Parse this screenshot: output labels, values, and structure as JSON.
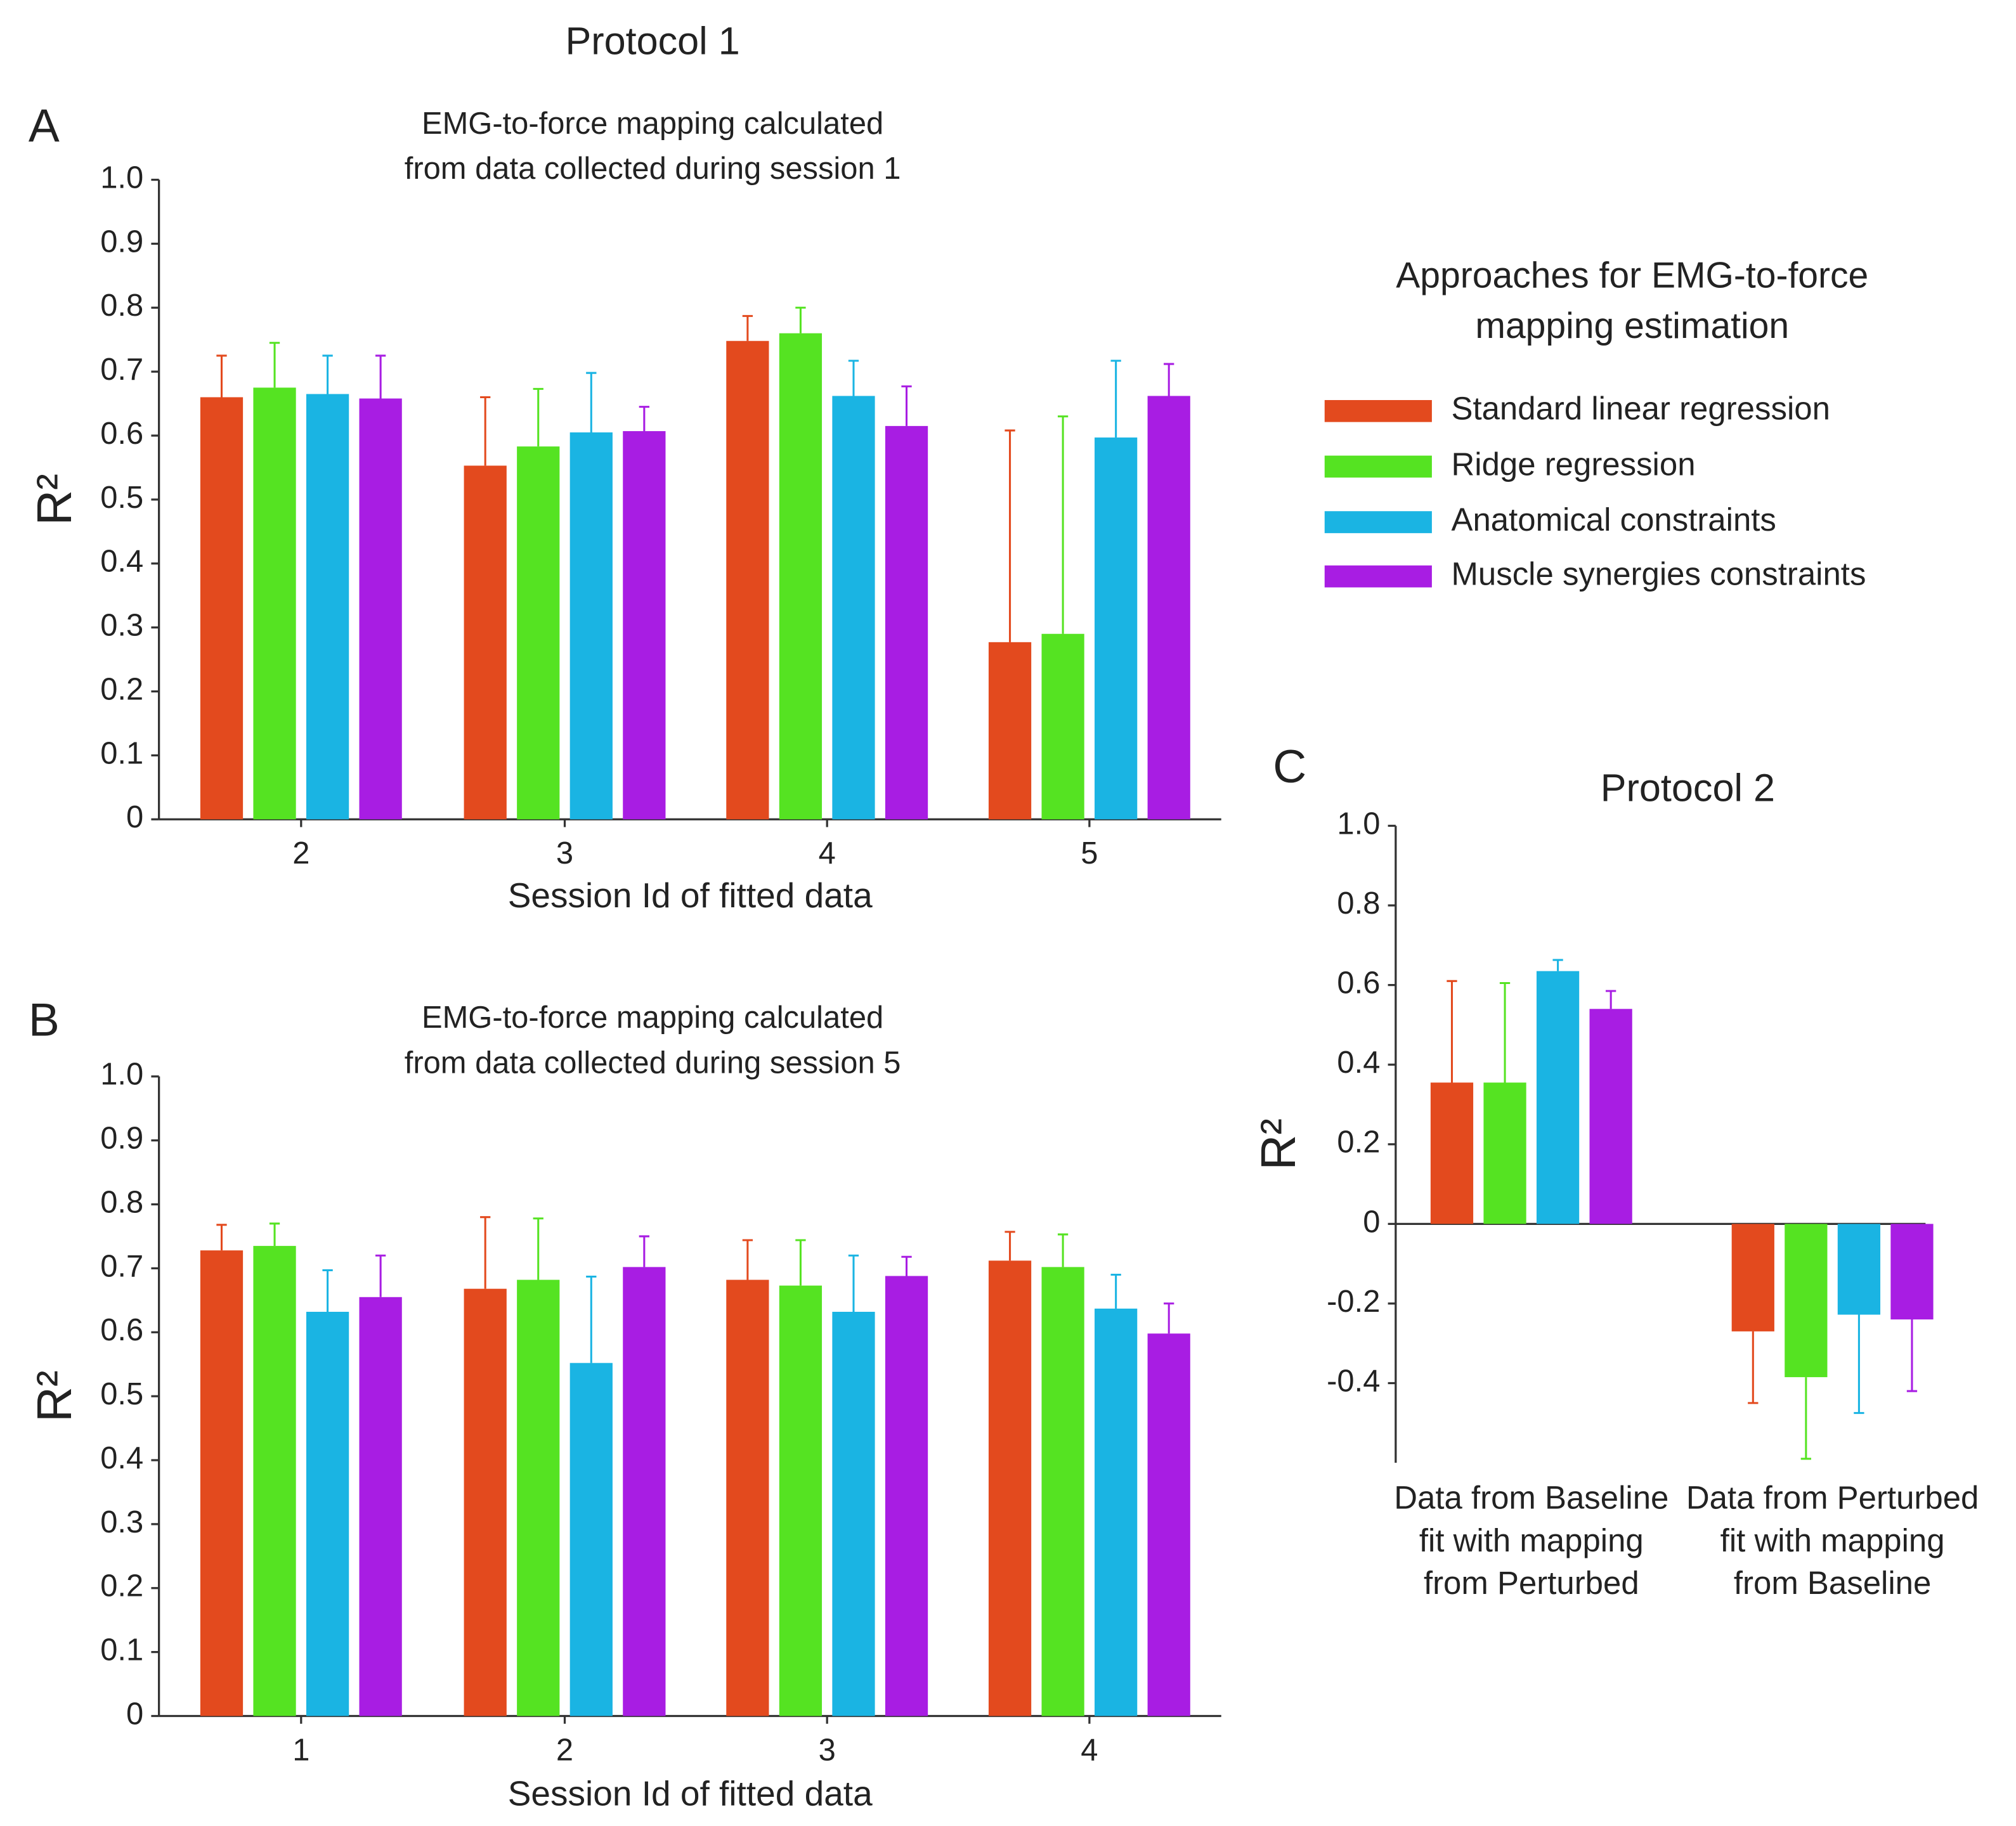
{
  "title": "Protocol 1",
  "legend_title": [
    "Approaches for EMG-to-force",
    "mapping estimation"
  ],
  "chart_data": [
    {
      "type": "bar",
      "panel": "A",
      "title": [
        "EMG-to-force mapping calculated",
        "from data collected during session 1"
      ],
      "xlabel": "Session Id of fitted data",
      "ylabel": "R²",
      "categories": [
        "2",
        "3",
        "4",
        "5"
      ],
      "ylim": [
        0,
        1
      ],
      "yticks": [
        0,
        0.1,
        0.2,
        0.3,
        0.4,
        0.5,
        0.6,
        0.7,
        0.8,
        0.9,
        {
          "value": 1,
          "label": "1.0"
        }
      ],
      "series": [
        {
          "name": "Standard linear regression",
          "color": "#e34a1e",
          "values": [
            0.66,
            0.553,
            0.748,
            0.277
          ],
          "errors": [
            0.065,
            0.107,
            0.039,
            0.331
          ]
        },
        {
          "name": "Ridge regression",
          "color": "#55e322",
          "values": [
            0.675,
            0.583,
            0.76,
            0.29
          ],
          "errors": [
            0.07,
            0.09,
            0.04,
            0.34
          ]
        },
        {
          "name": "Anatomical constraints",
          "color": "#1ab4e3",
          "values": [
            0.665,
            0.605,
            0.662,
            0.597
          ],
          "errors": [
            0.06,
            0.093,
            0.055,
            0.12
          ]
        },
        {
          "name": "Muscle synergies constraints",
          "color": "#a81de3",
          "values": [
            0.658,
            0.607,
            0.615,
            0.662
          ],
          "errors": [
            0.067,
            0.038,
            0.062,
            0.05
          ]
        }
      ]
    },
    {
      "type": "bar",
      "panel": "B",
      "title": [
        "EMG-to-force mapping calculated",
        "from data collected during session 5"
      ],
      "xlabel": "Session Id of fitted data",
      "ylabel": "R²",
      "categories": [
        "1",
        "2",
        "3",
        "4"
      ],
      "ylim": [
        0,
        1
      ],
      "yticks": [
        0,
        0.1,
        0.2,
        0.3,
        0.4,
        0.5,
        0.6,
        0.7,
        0.8,
        0.9,
        {
          "value": 1,
          "label": "1.0"
        }
      ],
      "series": [
        {
          "color": "#e34a1e",
          "values": [
            0.728,
            0.668,
            0.682,
            0.712
          ],
          "errors": [
            0.04,
            0.112,
            0.062,
            0.045
          ]
        },
        {
          "color": "#55e322",
          "values": [
            0.735,
            0.682,
            0.673,
            0.702
          ],
          "errors": [
            0.035,
            0.096,
            0.071,
            0.051
          ]
        },
        {
          "color": "#1ab4e3",
          "values": [
            0.632,
            0.552,
            0.632,
            0.637
          ],
          "errors": [
            0.065,
            0.135,
            0.088,
            0.053
          ]
        },
        {
          "color": "#a81de3",
          "values": [
            0.655,
            0.702,
            0.688,
            0.598
          ],
          "errors": [
            0.065,
            0.048,
            0.03,
            0.047
          ]
        }
      ]
    },
    {
      "type": "bar",
      "panel": "C",
      "title": [
        "Protocol 2"
      ],
      "ylabel": "R²",
      "categories": [
        [
          "Data from Baseline",
          "fit with mapping",
          "from Perturbed"
        ],
        [
          "Data from Perturbed",
          "fit with mapping",
          "from Baseline"
        ]
      ],
      "ylim": [
        -0.6,
        1
      ],
      "yticks": [
        -0.4,
        -0.2,
        0,
        0.2,
        0.4,
        0.6,
        0.8,
        {
          "value": 1,
          "label": "1.0"
        }
      ],
      "series": [
        {
          "color": "#e34a1e",
          "values": [
            0.355,
            -0.27
          ],
          "errors": [
            0.255,
            0.18
          ]
        },
        {
          "color": "#55e322",
          "values": [
            0.355,
            -0.385
          ],
          "errors": [
            0.25,
            0.205
          ]
        },
        {
          "color": "#1ab4e3",
          "values": [
            0.635,
            -0.228
          ],
          "errors": [
            0.028,
            0.247
          ]
        },
        {
          "color": "#a81de3",
          "values": [
            0.54,
            -0.24
          ],
          "errors": [
            0.045,
            0.18
          ]
        }
      ]
    }
  ]
}
